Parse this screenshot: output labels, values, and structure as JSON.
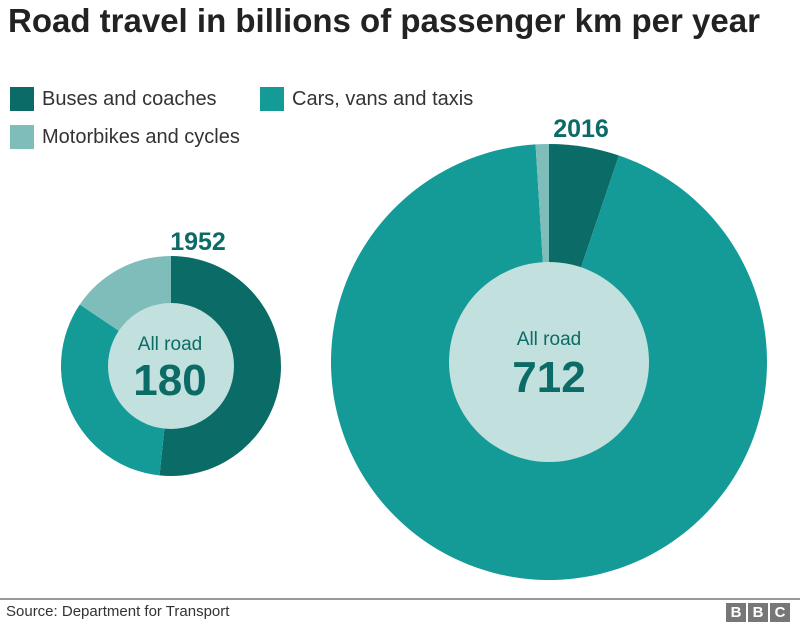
{
  "title": "Road travel in billions of passenger km per year",
  "legend": [
    {
      "label": "Buses and coaches",
      "color": "#0b6b66"
    },
    {
      "label": "Cars, vans and taxis",
      "color": "#149b98"
    },
    {
      "label": "Motorbikes and cycles",
      "color": "#7ebdba"
    }
  ],
  "center_fill": "#c2e0de",
  "source": "Source: Department for Transport",
  "logo": [
    "B",
    "B",
    "C"
  ],
  "chart_data": {
    "type": "pie",
    "title": "Road travel in billions of passenger km per year",
    "categories": [
      "Buses and coaches",
      "Cars, vans and taxis",
      "Motorbikes and cycles"
    ],
    "series": [
      {
        "name": "1952",
        "total_label": "All road",
        "total": 180,
        "values": [
          93,
          59,
          28
        ]
      },
      {
        "name": "2016",
        "total_label": "All road",
        "total": 712,
        "values": [
          37,
          668,
          7
        ]
      }
    ],
    "legend_position": "top-left"
  }
}
